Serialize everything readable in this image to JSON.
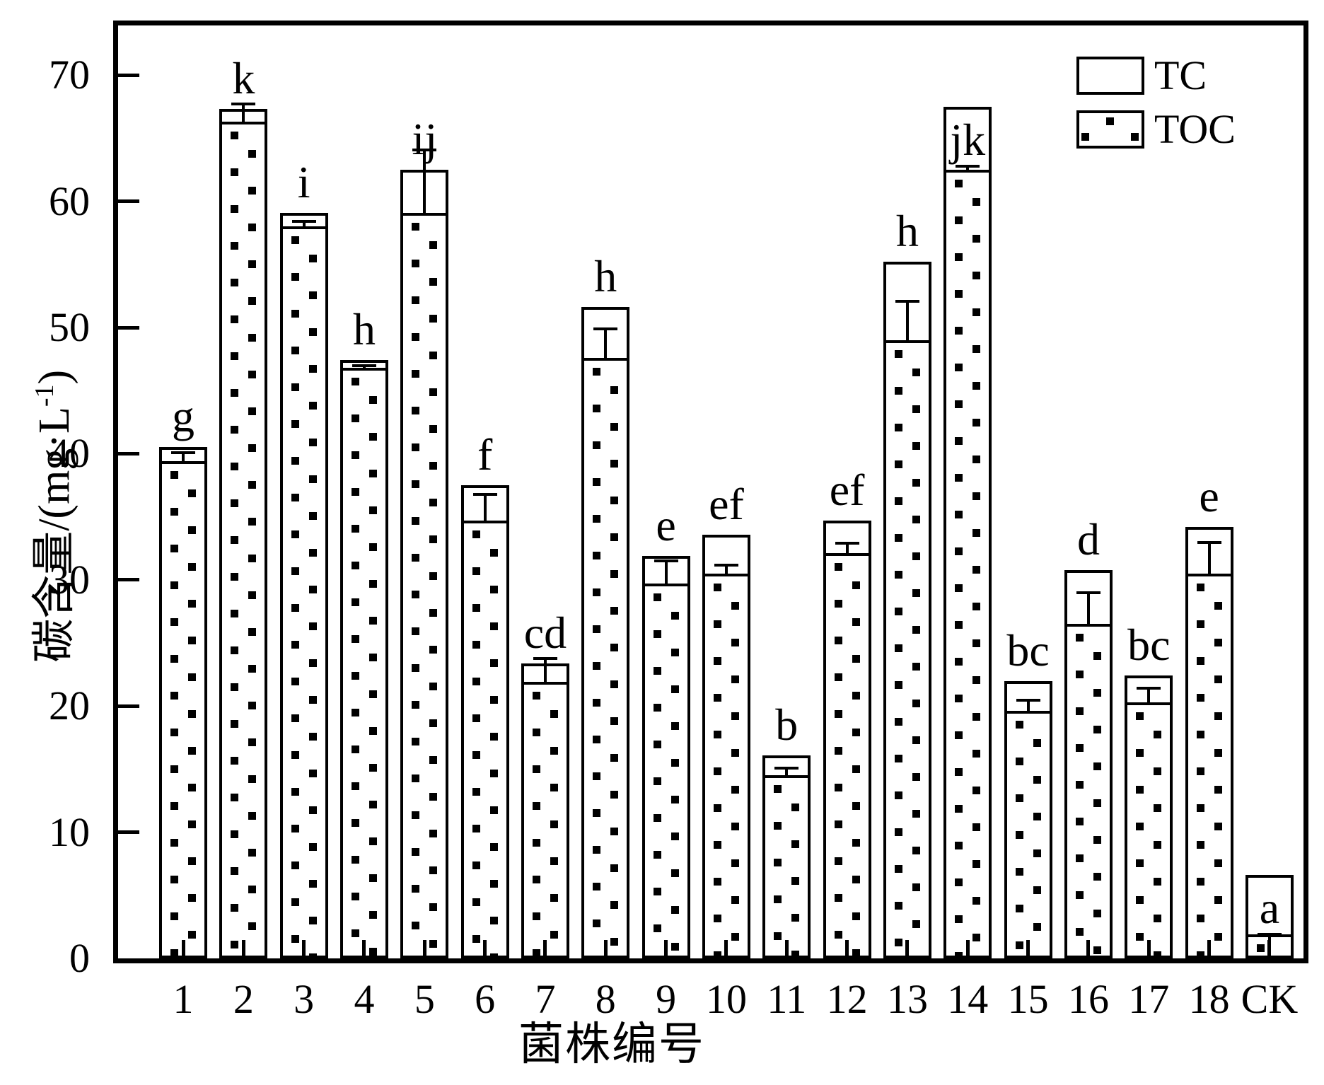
{
  "figure": {
    "background": "#ffffff",
    "ink_color": "#000000"
  },
  "axes": {
    "ylabel_prefix": "碳含量/(mg·L",
    "ylabel_sup": "-1",
    "ylabel_suffix": ")",
    "xlabel": "菌株编号",
    "yticks": [
      0,
      10,
      20,
      30,
      40,
      50,
      60,
      70
    ]
  },
  "legend": {
    "items": [
      {
        "label": "TC",
        "fill": "plain"
      },
      {
        "label": "TOC",
        "fill": "dots"
      }
    ]
  },
  "chart_data": {
    "type": "bar",
    "title": "",
    "xlabel": "菌株编号",
    "ylabel": "碳含量/(mg·L-1)",
    "ylim": [
      0,
      74
    ],
    "grid": false,
    "legend_position": "upper right",
    "categories": [
      "1",
      "2",
      "3",
      "4",
      "5",
      "6",
      "7",
      "8",
      "9",
      "10",
      "11",
      "12",
      "13",
      "14",
      "15",
      "16",
      "17",
      "18",
      "CK"
    ],
    "series": [
      {
        "name": "TC",
        "style": "open-bar",
        "values": [
          40.5,
          67.3,
          59.1,
          47.4,
          62.5,
          37.5,
          23.4,
          51.6,
          31.9,
          33.6,
          16.1,
          34.7,
          55.2,
          67.5,
          22.0,
          30.8,
          22.4,
          34.2,
          6.6
        ]
      },
      {
        "name": "TOC",
        "style": "dotted-bar",
        "values": [
          39.4,
          66.3,
          58.0,
          46.8,
          59.1,
          34.7,
          21.9,
          47.6,
          29.7,
          30.5,
          14.5,
          32.1,
          49.0,
          62.5,
          19.6,
          26.5,
          20.3,
          30.5,
          1.9
        ]
      }
    ],
    "error_hi": [
      40.2,
      67.8,
      58.5,
      47.1,
      64.2,
      36.9,
      23.9,
      50.0,
      31.6,
      31.3,
      15.2,
      33.0,
      52.2,
      62.9,
      20.6,
      29.1,
      21.5,
      33.1,
      2.0
    ],
    "error_lo": [
      39.4,
      66.3,
      58.0,
      46.8,
      59.1,
      34.7,
      21.9,
      47.6,
      29.7,
      30.5,
      14.5,
      32.1,
      49.0,
      62.5,
      19.6,
      26.5,
      20.3,
      30.5,
      0.6
    ],
    "sig_letters": [
      "g",
      "k",
      "i",
      "h",
      "ij",
      "f",
      "cd",
      "h",
      "e",
      "ef",
      "b",
      "ef",
      "h",
      "jk",
      "bc",
      "d",
      "bc",
      "e",
      "a"
    ],
    "letters_inside": [
      false,
      false,
      false,
      false,
      false,
      false,
      false,
      false,
      false,
      false,
      false,
      false,
      false,
      true,
      false,
      false,
      false,
      false,
      true
    ]
  }
}
